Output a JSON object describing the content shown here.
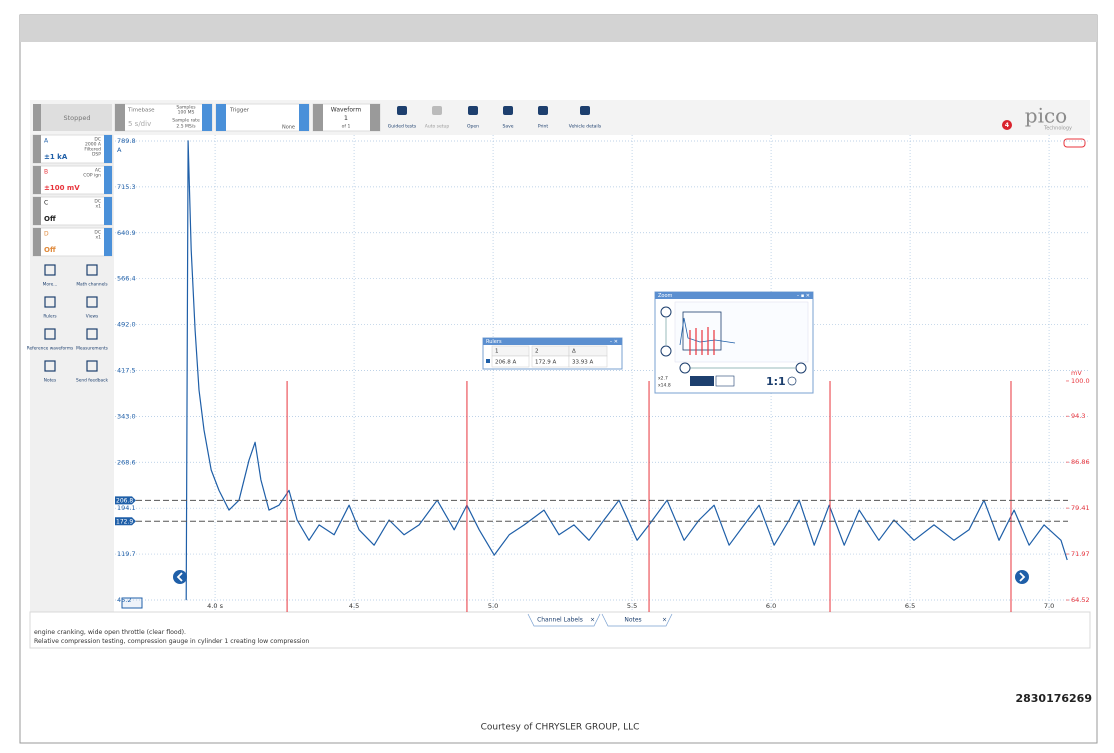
{
  "toolbar": {
    "status": "Stopped",
    "timebase": {
      "label": "Timebase",
      "value": "5 s/div",
      "samples_label": "Samples",
      "samples": "100 MS",
      "rate_label": "Sample rate",
      "rate": "2.5 MS/s"
    },
    "trigger": {
      "label": "Trigger",
      "mode": "None"
    },
    "waveform": {
      "label": "Waveform",
      "index": "1",
      "of": "of 1"
    },
    "buttons": [
      "Guided tests",
      "Auto setup",
      "Open",
      "Save",
      "Print",
      "Vehicle details"
    ],
    "logo": "pico",
    "logo_sub": "Technology",
    "badge": "4"
  },
  "channels": [
    {
      "name": "A",
      "coupling": "DC",
      "info": [
        "2000 A",
        "Filtered",
        "DSP"
      ],
      "range": "±1 kA",
      "color": "#1f5fa8"
    },
    {
      "name": "B",
      "coupling": "AC",
      "info": [
        "COP ign"
      ],
      "range": "±100 mV",
      "color": "#e8343c"
    },
    {
      "name": "C",
      "coupling": "DC",
      "info": [
        "x1"
      ],
      "range": "Off",
      "color": "#222222"
    },
    {
      "name": "D",
      "coupling": "DC",
      "info": [
        "x1"
      ],
      "range": "Off",
      "color": "#e08a3c"
    }
  ],
  "tools": [
    "More...",
    "Math channels",
    "Rulers",
    "Views",
    "Reference waveforms",
    "Measurements",
    "Notes",
    "Send feedback"
  ],
  "chart_data": {
    "type": "line",
    "y_unit": "A",
    "y2_unit": "mV",
    "xlim": [
      3.64,
      7.14
    ],
    "xticks": [
      {
        "value": 4.0,
        "label": "4.0 s"
      },
      4.5,
      {
        "value": 5.0,
        "label": "5.0"
      },
      5.5,
      {
        "value": 6.0,
        "label": "6.0"
      },
      6.5,
      {
        "value": 7.0,
        "label": "7.0"
      }
    ],
    "ylim": [
      25.7,
      799.5
    ],
    "yticks": [
      789.8,
      715.3,
      640.9,
      566.4,
      {
        "value": 492,
        "label": "492.0"
      },
      417.5,
      {
        "value": 343,
        "label": "343.0"
      },
      268.6,
      194.1,
      119.7,
      45.2
    ],
    "y2lim": [
      62.58,
      139.84
    ],
    "y2ticks": [
      {
        "value": 100,
        "label": "100.0"
      },
      94.3,
      86.86,
      79.41,
      71.97,
      64.52
    ],
    "grid": true,
    "series": [
      {
        "name": "A",
        "color": "#1f5fa8",
        "x": [
          3.896,
          3.903,
          3.914,
          3.928,
          3.942,
          3.96,
          3.986,
          4.014,
          4.05,
          4.086,
          4.122,
          4.144,
          4.165,
          4.194,
          4.23,
          4.266,
          4.295,
          4.338,
          4.374,
          4.428,
          4.482,
          4.518,
          4.572,
          4.626,
          4.68,
          4.734,
          4.799,
          4.86,
          4.906,
          4.95,
          5.004,
          5.058,
          5.112,
          5.183,
          5.237,
          5.291,
          5.345,
          5.399,
          5.453,
          5.518,
          5.561,
          5.626,
          5.687,
          5.741,
          5.795,
          5.849,
          5.903,
          5.957,
          6.011,
          6.065,
          6.101,
          6.155,
          6.209,
          6.263,
          6.317,
          6.388,
          6.442,
          6.514,
          6.586,
          6.658,
          6.712,
          6.766,
          6.82,
          6.874,
          6.928,
          6.982,
          7.043,
          7.065
        ],
        "values": [
          45,
          790,
          613,
          483,
          386,
          321,
          256,
          223,
          191,
          207,
          272,
          301,
          240,
          191,
          199,
          223,
          175,
          142,
          167,
          151,
          199,
          159,
          134,
          175,
          151,
          167,
          207,
          159,
          199,
          159,
          118,
          151,
          167,
          191,
          151,
          167,
          142,
          175,
          207,
          142,
          167,
          207,
          142,
          175,
          199,
          134,
          167,
          199,
          134,
          175,
          207,
          134,
          199,
          134,
          191,
          142,
          175,
          142,
          167,
          142,
          159,
          207,
          142,
          191,
          134,
          167,
          142,
          110
        ]
      },
      {
        "name": "B",
        "color": "#e8343c",
        "axis": "y2",
        "x": [
          4.259,
          4.906,
          5.561,
          6.212,
          6.863
        ],
        "values": [
          100,
          100,
          100,
          100,
          100
        ]
      }
    ],
    "rulers": [
      206.8,
      172.9
    ]
  },
  "rulers_window": {
    "title": "Rulers",
    "headers": [
      "1",
      "2",
      "Δ"
    ],
    "row": [
      "206.8 A",
      "172.9 A",
      "33.93 A"
    ]
  },
  "zoom_window": {
    "title": "Zoom",
    "zoom_x": "x2.7",
    "zoom_y": "x14.8",
    "reset": "1:1"
  },
  "tabs": [
    "Channel Labels",
    "Notes"
  ],
  "notes": [
    "engine cranking, wide open throttle (clear flood).",
    "Relative compression testing, compression gauge in cylinder 1 creating low compression"
  ],
  "footer": {
    "id": "2830176269",
    "credit": "Courtesy of CHRYSLER GROUP, LLC"
  }
}
